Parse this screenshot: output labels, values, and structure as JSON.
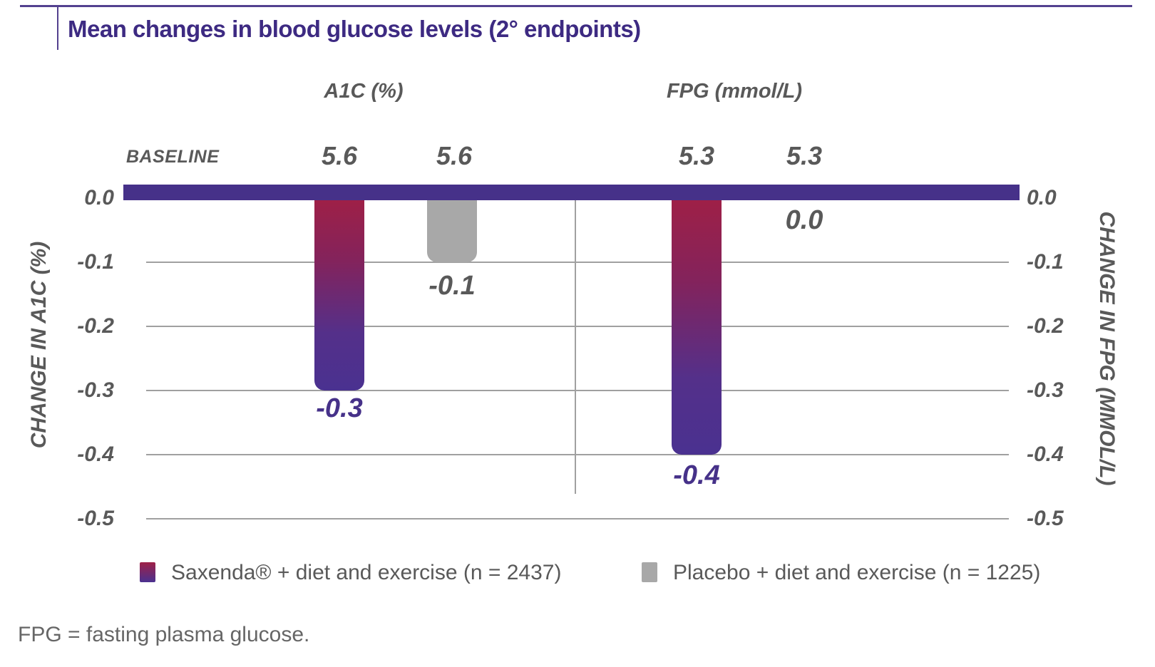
{
  "title": "Mean changes in blood glucose levels (2° endpoints)",
  "footnote": "FPG = fasting plasma glucose.",
  "baseline_label": "BASELINE",
  "colors": {
    "title": "#3d2a82",
    "rule": "#53418f",
    "baseline-bar": "#463189",
    "sax-top": "#9e2047",
    "sax-bottom": "#4a3190",
    "placebo": "#a8a8a8",
    "grid": "#a0a0a0",
    "gray-text": "#595959",
    "label-purple": "#463189"
  },
  "legend": {
    "saxenda": {
      "label": "Saxenda® + diet and exercise (n = 2437)",
      "swatch": "red-purple-gradient"
    },
    "placebo": {
      "label": "Placebo + diet and exercise (n = 1225)",
      "swatch": "gray"
    }
  },
  "chart_data": {
    "type": "bar",
    "title": "Mean changes in blood glucose levels (2° endpoints)",
    "grid": true,
    "legend_position": "bottom",
    "ylim": [
      -0.5,
      0
    ],
    "y_ticks": [
      "0.0",
      "-0.1",
      "-0.2",
      "-0.3",
      "-0.4",
      "-0.5"
    ],
    "panels": [
      {
        "title": "A1C (%)",
        "axis_label": "CHANGE IN A1C (%)",
        "series": [
          {
            "name": "Saxenda + diet and exercise",
            "baseline": "5.6",
            "value": -0.3,
            "label": "-0.3"
          },
          {
            "name": "Placebo + diet and exercise",
            "baseline": "5.6",
            "value": -0.1,
            "label": "-0.1"
          }
        ]
      },
      {
        "title": "FPG (mmol/L)",
        "axis_label": "CHANGE IN FPG (MMOL/L)",
        "series": [
          {
            "name": "Saxenda + diet and exercise",
            "baseline": "5.3",
            "value": -0.4,
            "label": "-0.4"
          },
          {
            "name": "Placebo + diet and exercise",
            "baseline": "5.3",
            "value": 0.0,
            "label": "0.0"
          }
        ]
      }
    ]
  }
}
